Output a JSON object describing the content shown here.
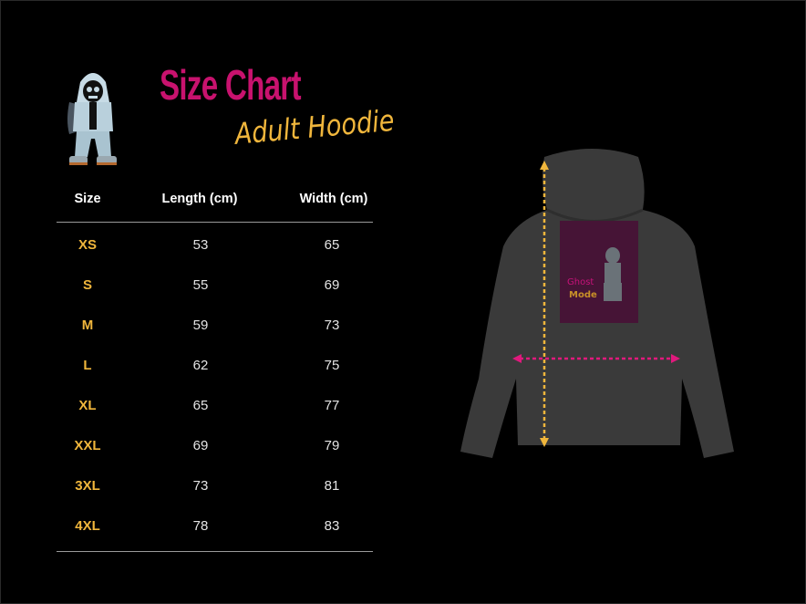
{
  "header": {
    "title": "Size Chart",
    "subtitle": "Adult Hoodie"
  },
  "table": {
    "columns": [
      "Size",
      "Length (cm)",
      "Width (cm)"
    ],
    "rows": [
      {
        "size": "XS",
        "length": "53",
        "width": "65"
      },
      {
        "size": "S",
        "length": "55",
        "width": "69"
      },
      {
        "size": "M",
        "length": "59",
        "width": "73"
      },
      {
        "size": "L",
        "length": "62",
        "width": "75"
      },
      {
        "size": "XL",
        "length": "65",
        "width": "77"
      },
      {
        "size": "XXL",
        "length": "69",
        "width": "79"
      },
      {
        "size": "3XL",
        "length": "73",
        "width": "81"
      },
      {
        "size": "4XL",
        "length": "78",
        "width": "83"
      }
    ]
  },
  "illustration": {
    "garment_color": "#3a3a3a",
    "length_arrow_color": "#f0b63c",
    "width_arrow_color": "#e0197d",
    "print_logo_text": "Ghost Mode"
  },
  "colors": {
    "title": "#c8126e",
    "subtitle": "#f0b63c",
    "size_labels": "#f0b63c"
  }
}
